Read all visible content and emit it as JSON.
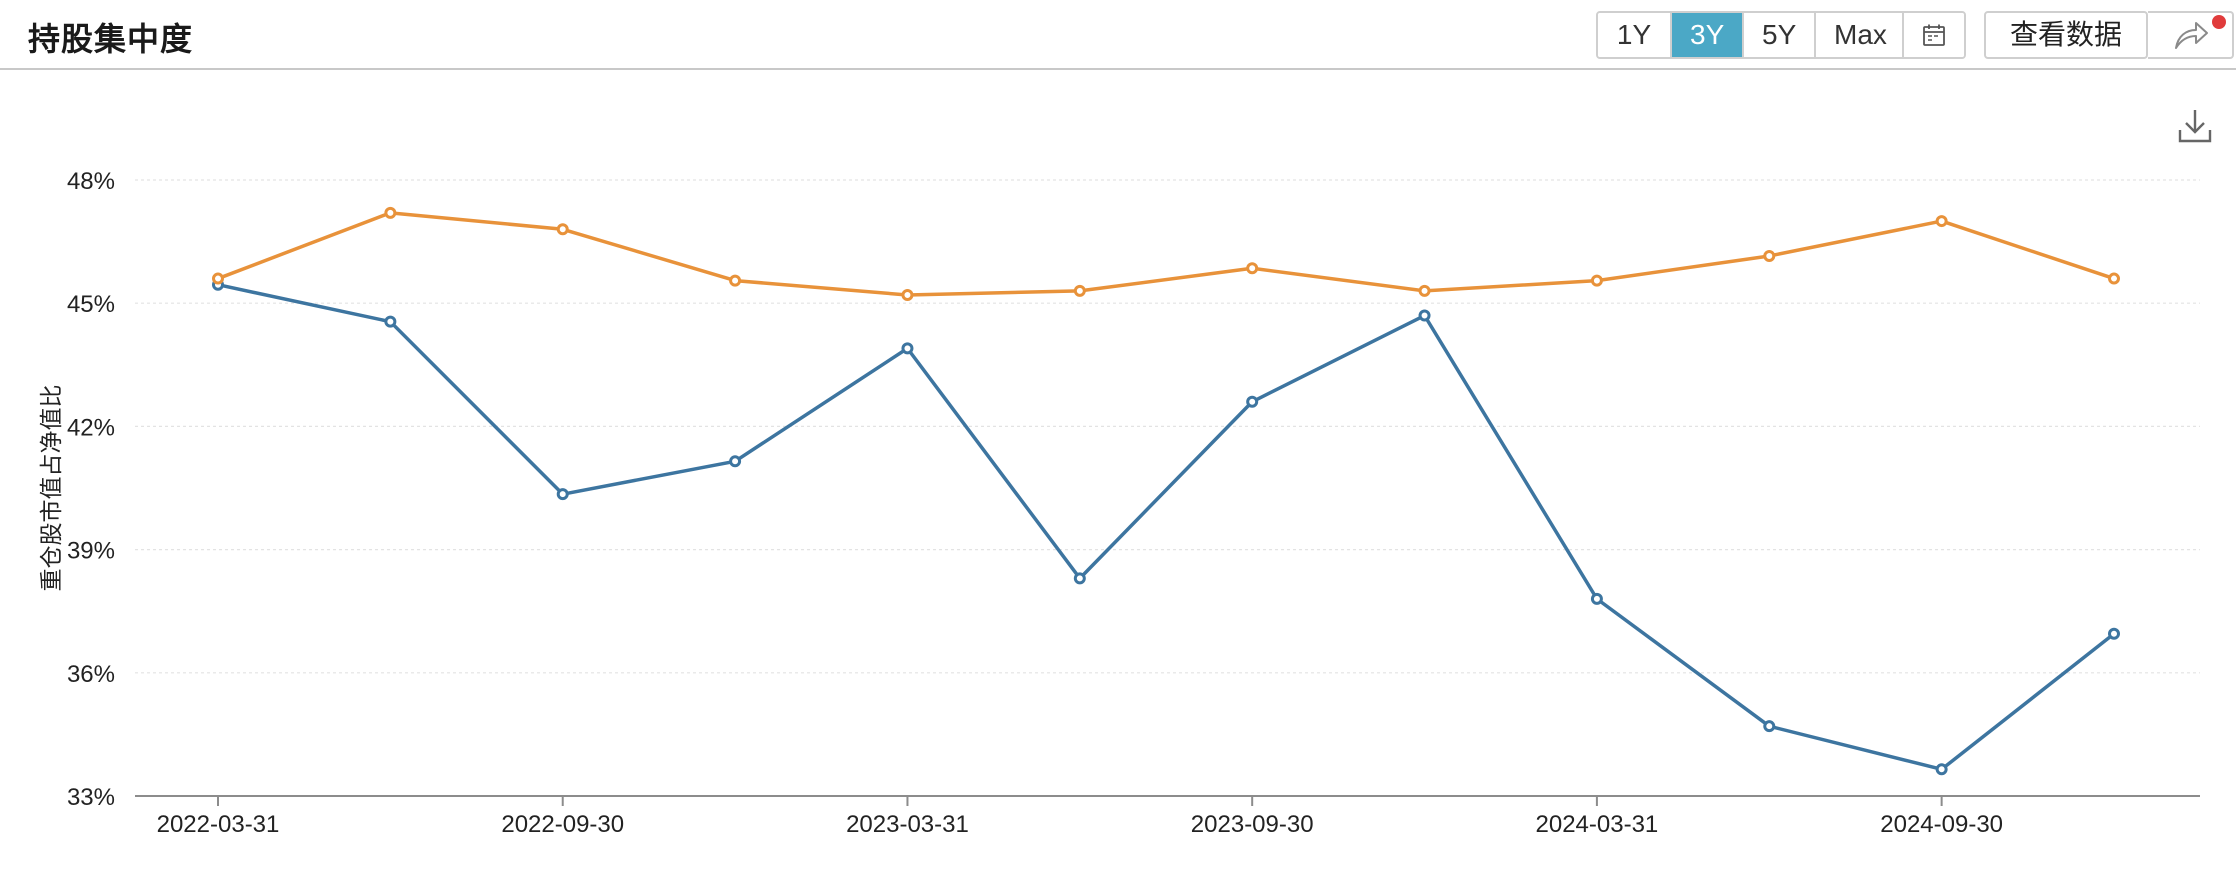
{
  "header": {
    "title": "持股集中度",
    "ranges": [
      "1Y",
      "3Y",
      "5Y",
      "Max"
    ],
    "active_range": "3Y",
    "calendar_icon": "calendar-icon",
    "view_data_label": "查看数据",
    "share_icon": "share-icon",
    "notification_color": "#e03b3b"
  },
  "toolbar": {
    "download_icon": "download-icon"
  },
  "colors": {
    "accent": "#4ba8c6",
    "series_blue": "#3d75a0",
    "series_orange": "#e8923a"
  },
  "chart_data": {
    "type": "line",
    "ylabel": "重仓股市值占净值比",
    "y_ticks": [
      "48%",
      "45%",
      "42%",
      "39%",
      "36%",
      "33%"
    ],
    "y_tick_values": [
      48,
      45,
      42,
      39,
      36,
      33
    ],
    "ylim": [
      33,
      48
    ],
    "x_tick_labels": [
      "2022-03-31",
      "2022-09-30",
      "2023-03-31",
      "2023-09-30",
      "2024-03-31",
      "2024-09-30"
    ],
    "x": [
      "2022-03-31",
      "2022-06-30",
      "2022-09-30",
      "2022-12-31",
      "2023-03-31",
      "2023-06-30",
      "2023-09-30",
      "2023-12-31",
      "2024-03-31",
      "2024-06-30",
      "2024-09-30",
      "2024-12-31"
    ],
    "grid": true,
    "series": [
      {
        "color": "#3d75a0",
        "values": [
          45.45,
          44.55,
          40.35,
          41.15,
          43.9,
          38.3,
          42.6,
          44.7,
          37.8,
          34.7,
          33.65,
          36.95
        ]
      },
      {
        "color": "#e8923a",
        "values": [
          45.6,
          47.2,
          46.8,
          45.55,
          45.2,
          45.3,
          45.85,
          45.3,
          45.55,
          46.15,
          47.0,
          45.6
        ]
      }
    ]
  }
}
